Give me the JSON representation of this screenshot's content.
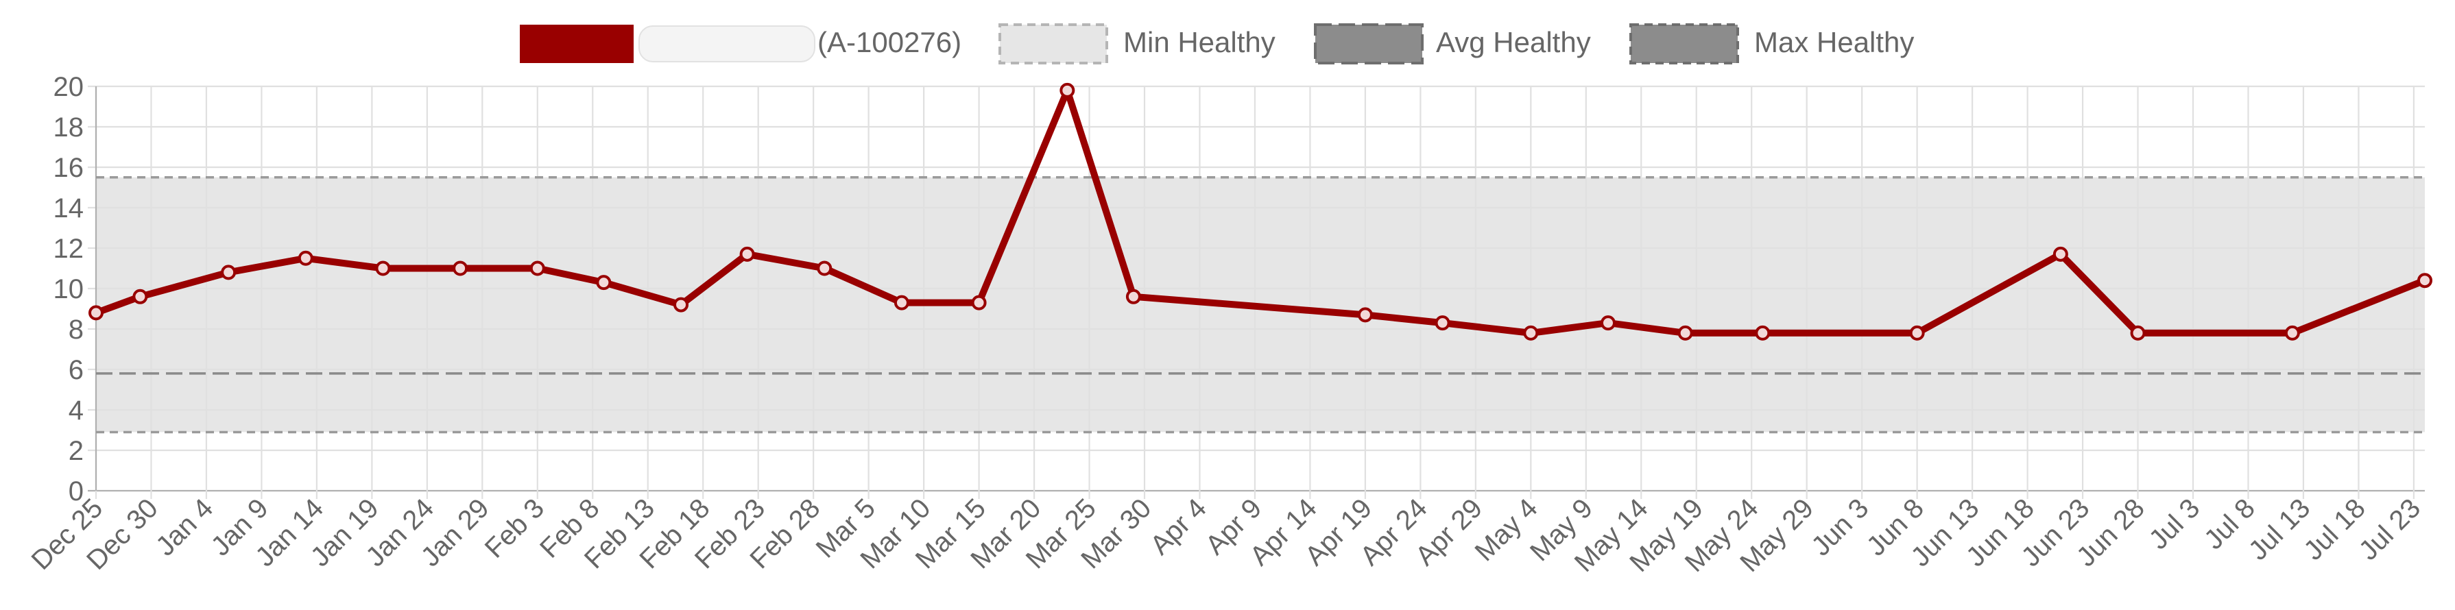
{
  "chart_data": {
    "type": "line",
    "title": "",
    "xlabel": "",
    "ylabel": "",
    "ylim": [
      0,
      20
    ],
    "y_ticks": [
      0,
      2,
      4,
      6,
      8,
      10,
      12,
      14,
      16,
      18,
      20
    ],
    "x_tick_labels": [
      "Dec 25",
      "Dec 30",
      "Jan 4",
      "Jan 9",
      "Jan 14",
      "Jan 19",
      "Jan 24",
      "Jan 29",
      "Feb 3",
      "Feb 8",
      "Feb 13",
      "Feb 18",
      "Feb 23",
      "Feb 28",
      "Mar 5",
      "Mar 10",
      "Mar 15",
      "Mar 20",
      "Mar 25",
      "Mar 30",
      "Apr 4",
      "Apr 9",
      "Apr 14",
      "Apr 19",
      "Apr 24",
      "Apr 29",
      "May 4",
      "May 9",
      "May 14",
      "May 19",
      "May 24",
      "May 29",
      "Jun 3",
      "Jun 8",
      "Jun 13",
      "Jun 18",
      "Jun 23",
      "Jun 28",
      "Jul 3",
      "Jul 8",
      "Jul 13",
      "Jul 18",
      "Jul 23"
    ],
    "x_domain": [
      "Dec 25",
      "Jul 24"
    ],
    "grid": true,
    "legend_position": "top",
    "series": [
      {
        "name": "(A-100276)",
        "color": "#990000",
        "x": [
          "Dec 25",
          "Dec 29",
          "Jan 6",
          "Jan 13",
          "Jan 20",
          "Jan 27",
          "Feb 3",
          "Feb 9",
          "Feb 16",
          "Feb 22",
          "Mar 1",
          "Mar 8",
          "Mar 15",
          "Mar 23",
          "Mar 29",
          "Apr 19",
          "Apr 26",
          "May 4",
          "May 11",
          "May 18",
          "May 25",
          "Jun 8",
          "Jun 21",
          "Jun 28",
          "Jul 12",
          "Jul 24"
        ],
        "values": [
          8.8,
          9.6,
          10.8,
          11.5,
          11.0,
          11.0,
          11.0,
          10.3,
          9.2,
          11.7,
          11.0,
          9.3,
          9.3,
          19.8,
          9.6,
          8.7,
          8.3,
          7.8,
          8.3,
          7.8,
          7.8,
          7.8,
          11.7,
          7.8,
          7.8,
          10.4
        ]
      }
    ],
    "reference_lines": [
      {
        "name": "Min Healthy",
        "value": 2.9
      },
      {
        "name": "Avg Healthy",
        "value": 5.8
      },
      {
        "name": "Max Healthy",
        "value": 15.5
      }
    ],
    "colors": {
      "series": "#990000",
      "healthy_band": "#e6e6e6",
      "min_line": "#9a9a9a",
      "avg_line": "#8a8a8a",
      "max_line": "#9a9a9a",
      "legend_min_fill": "#e6e6e6",
      "legend_avg_fill": "#8c8c8c",
      "legend_max_fill": "#8c8c8c",
      "grid": "#e0e0e0",
      "text": "#666666"
    }
  }
}
